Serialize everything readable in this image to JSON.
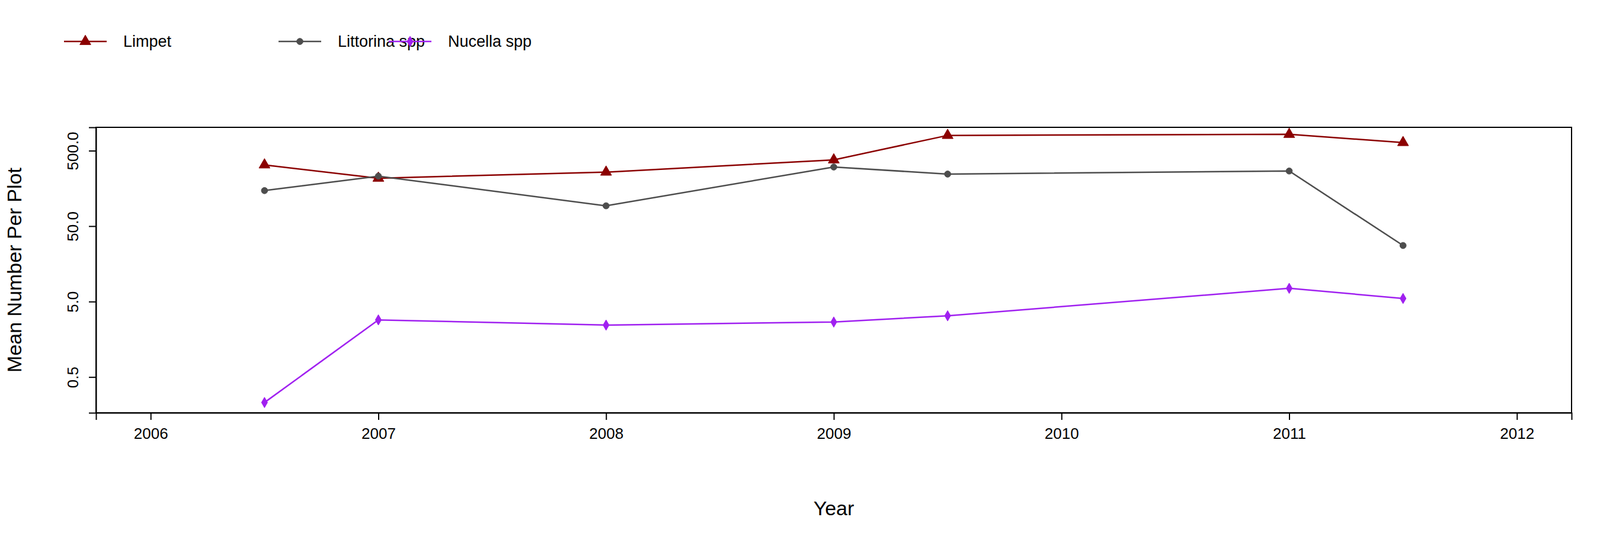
{
  "chart_data": {
    "type": "line",
    "x_label": "Year",
    "y_label": "Mean Number Per Plot",
    "x": [
      2006.5,
      2007,
      2008,
      2009,
      2009.5,
      2011,
      2011.5
    ],
    "series": [
      {
        "name": "Limpet",
        "color": "#8b0000",
        "marker": "triangle",
        "values": [
          324,
          216,
          260,
          378,
          797,
          823,
          641
        ]
      },
      {
        "name": "Littorina spp",
        "color": "#4d4d4d",
        "marker": "circle",
        "values": [
          148,
          230,
          93,
          304,
          245,
          269,
          27.7
        ]
      },
      {
        "name": "Nucella spp",
        "color": "#a020f0",
        "marker": "diamond",
        "values": [
          0.23,
          2.86,
          2.44,
          2.68,
          3.24,
          7.5,
          5.5
        ]
      }
    ],
    "xlim": [
      2005.76,
      2012.24
    ],
    "xticks": [
      2006,
      2007,
      2008,
      2009,
      2010,
      2011,
      2012
    ],
    "ylim": [
      0.168,
      1020
    ],
    "yticks": [
      {
        "value": 0.5,
        "label": "0.5"
      },
      {
        "value": 5,
        "label": "5.0"
      },
      {
        "value": 50,
        "label": "50.0"
      },
      {
        "value": 500,
        "label": "500.0"
      }
    ],
    "log": "y",
    "grid": false,
    "legend": "top-left"
  }
}
